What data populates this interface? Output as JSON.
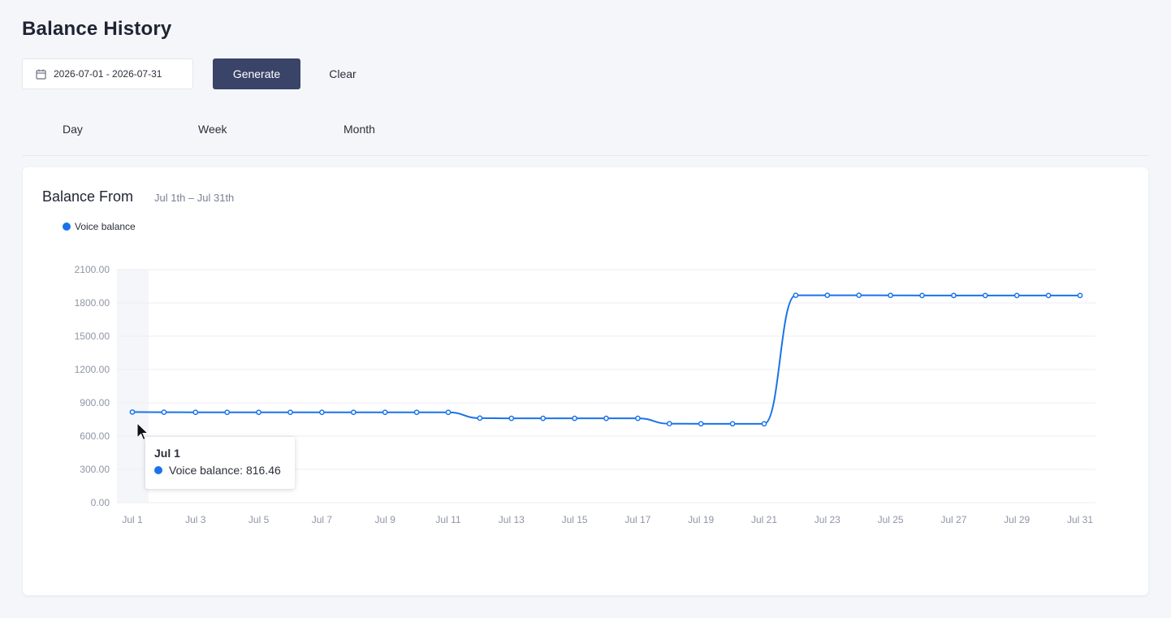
{
  "page": {
    "title": "Balance History"
  },
  "toolbar": {
    "date_range": "2026-07-01 - 2026-07-31",
    "generate_label": "Generate",
    "clear_label": "Clear"
  },
  "tabs": [
    {
      "label": "Day"
    },
    {
      "label": "Week"
    },
    {
      "label": "Month"
    }
  ],
  "card": {
    "title": "Balance From",
    "subtitle": "Jul 1th – Jul 31th",
    "legend": "Voice balance"
  },
  "colors": {
    "accent": "#1a73e8",
    "button": "#3a4468"
  },
  "tooltip": {
    "title": "Jul 1",
    "text": "Voice balance: 816.46"
  },
  "chart_data": {
    "type": "line",
    "title": "",
    "xlabel": "",
    "ylabel": "",
    "ylim": [
      0,
      2100
    ],
    "yticks": [
      "0.00",
      "300.00",
      "600.00",
      "900.00",
      "1200.00",
      "1500.00",
      "1800.00",
      "2100.00"
    ],
    "xtick_labels": [
      "Jul 1",
      "Jul 3",
      "Jul 5",
      "Jul 7",
      "Jul 9",
      "Jul 11",
      "Jul 13",
      "Jul 15",
      "Jul 17",
      "Jul 19",
      "Jul 21",
      "Jul 23",
      "Jul 25",
      "Jul 27",
      "Jul 29",
      "Jul 31"
    ],
    "grid": true,
    "legend_position": "top-left",
    "highlighted": "Jul 1",
    "categories": [
      "Jul 1",
      "Jul 2",
      "Jul 3",
      "Jul 4",
      "Jul 5",
      "Jul 6",
      "Jul 7",
      "Jul 8",
      "Jul 9",
      "Jul 10",
      "Jul 11",
      "Jul 12",
      "Jul 13",
      "Jul 14",
      "Jul 15",
      "Jul 16",
      "Jul 17",
      "Jul 18",
      "Jul 19",
      "Jul 20",
      "Jul 21",
      "Jul 22",
      "Jul 23",
      "Jul 24",
      "Jul 25",
      "Jul 26",
      "Jul 27",
      "Jul 28",
      "Jul 29",
      "Jul 30",
      "Jul 31"
    ],
    "series": [
      {
        "name": "Voice balance",
        "values": [
          816.46,
          815,
          814,
          814,
          814,
          814,
          814,
          814,
          814,
          814,
          814,
          762,
          760,
          760,
          760,
          760,
          760,
          712,
          711,
          711,
          711,
          1869,
          1869,
          1869,
          1868,
          1867,
          1867,
          1867,
          1867,
          1867,
          1867
        ]
      }
    ]
  }
}
